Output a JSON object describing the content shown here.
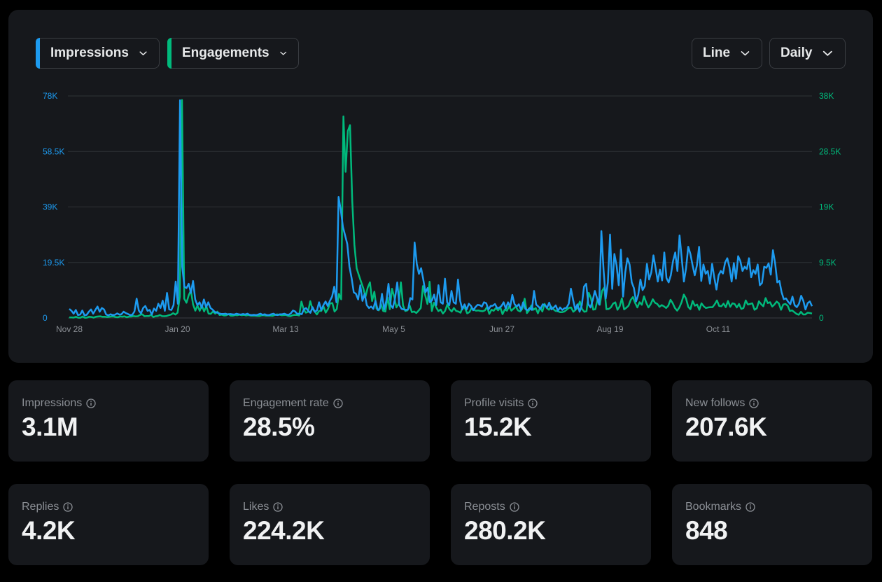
{
  "controls": {
    "metric_left": "Impressions",
    "metric_right": "Engagements",
    "chart_type": "Line",
    "interval": "Daily"
  },
  "colors": {
    "impressions": "#1d9bf0",
    "engagements": "#00ba7c",
    "grid": "#2f3336",
    "card": "#16181c"
  },
  "chart_data": {
    "type": "line",
    "x_tick_labels": [
      "Nov 28",
      "Jan 20",
      "Mar 13",
      "May 5",
      "Jun 27",
      "Aug 19",
      "Oct 11"
    ],
    "y_left_tick_labels": [
      "0",
      "19.5K",
      "39K",
      "58.5K",
      "78K"
    ],
    "y_right_tick_labels": [
      "0",
      "9.5K",
      "19K",
      "28.5K",
      "38K"
    ],
    "y_left_lim": [
      0,
      78000
    ],
    "y_right_lim": [
      0,
      38000
    ],
    "grid": true,
    "series": [
      {
        "name": "Impressions",
        "axis": "left",
        "color": "#1d9bf0",
        "values": [
          3200,
          2500,
          1500,
          2800,
          1000,
          1200,
          2600,
          900,
          1100,
          2200,
          3000,
          1500,
          2800,
          4000,
          2200,
          3500,
          3000,
          1200,
          900,
          1300,
          1000,
          1100,
          1600,
          1200,
          1300,
          2200,
          1700,
          1400,
          1000,
          1100,
          2300,
          6800,
          2600,
          1600,
          3500,
          4200,
          2500,
          2800,
          1200,
          3300,
          2500,
          5000,
          3500,
          6100,
          2500,
          8800,
          3000,
          2800,
          4500,
          12800,
          5000,
          76500,
          18000,
          11000,
          10500,
          12000,
          8800,
          13000,
          6500,
          4500,
          5500,
          3600,
          6500,
          3800,
          5500,
          3500,
          2900,
          2100,
          1900,
          1600,
          1400,
          1400,
          1500,
          1200,
          1400,
          1300,
          1200,
          1500,
          1300,
          1200,
          1400,
          1200,
          1500,
          1100,
          1000,
          1100,
          1000,
          1200,
          1500,
          1100,
          1300,
          1000,
          1000,
          1300,
          1500,
          1100,
          1000,
          1300,
          1300,
          1500,
          1200,
          1100,
          1600,
          2600,
          2300,
          1400,
          1500,
          1300,
          3000,
          3500,
          2500,
          1800,
          3800,
          2200,
          2600,
          5500,
          2800,
          4500,
          5800,
          4200,
          6000,
          7500,
          11000,
          5500,
          42500,
          38000,
          32000,
          29000,
          26000,
          18000,
          14000,
          9000,
          8500,
          6500,
          11500,
          6000,
          8500,
          4500,
          3500,
          4000,
          3200,
          6000,
          2800,
          3200,
          8500,
          3000,
          6000,
          12000,
          4500,
          3500,
          7000,
          12500,
          4500,
          3200,
          3000,
          2800,
          3000,
          7000,
          6500,
          26500,
          19000,
          15500,
          17500,
          13500,
          9000,
          10500,
          5500,
          6200,
          8200,
          4500,
          11500,
          5500,
          5000,
          13800,
          5500,
          4500,
          9500,
          5500,
          5000,
          13500,
          6000,
          3000,
          4800,
          3000,
          5000,
          4200,
          2700,
          3800,
          4600,
          4500,
          4000,
          5500,
          5200,
          3000,
          4200,
          4300,
          4900,
          3500,
          3600,
          4200,
          5500,
          3300,
          5500,
          3900,
          8100,
          4900,
          4000,
          4800,
          2800,
          5500,
          3200,
          2700,
          3500,
          2800,
          9500,
          4700,
          4000,
          3200,
          4800,
          4500,
          3600,
          5400,
          3000,
          3600,
          4400,
          2500,
          3700,
          2800,
          3400,
          3600,
          5000,
          10300,
          6400,
          3000,
          4800,
          2200,
          4500,
          11000,
          12000,
          4800,
          3700,
          6200,
          9500,
          7000,
          4700,
          30500,
          17000,
          6800,
          12500,
          29300,
          10200,
          22500,
          18500,
          11500,
          24000,
          7500,
          16000,
          21000,
          18800,
          12500,
          10500,
          5800,
          8200,
          13500,
          9800,
          11200,
          19000,
          13500,
          16000,
          22000,
          17500,
          12800,
          17000,
          13200,
          23000,
          14000,
          12500,
          15000,
          20000,
          23000,
          16500,
          29000,
          21000,
          12800,
          17500,
          25000,
          22500,
          18500,
          15000,
          18500,
          25000,
          13000,
          18800,
          15500,
          16500,
          12000,
          19000,
          14200,
          10000,
          15000,
          16500,
          15600,
          19500,
          21000,
          17800,
          12800,
          19300,
          13800,
          21700,
          20000,
          16500,
          18000,
          17200,
          21000,
          14300,
          16800,
          15500,
          18800,
          11500,
          12300,
          18000,
          17600,
          19200,
          15200,
          23800,
          19300,
          12500,
          13000,
          9000,
          6600,
          6900,
          5700,
          4800,
          7500,
          4500,
          3800,
          5000,
          7800,
          6000,
          3000,
          5200,
          5800,
          4100
        ]
      },
      {
        "name": "Engagements",
        "axis": "right",
        "color": "#00ba7c",
        "values": [
          100,
          80,
          60,
          200,
          50,
          40,
          250,
          30,
          60,
          210,
          170,
          50,
          200,
          250,
          290,
          200,
          220,
          150,
          190,
          250,
          260,
          160,
          120,
          280,
          230,
          290,
          120,
          240,
          240,
          320,
          280,
          300,
          510,
          630,
          300,
          330,
          320,
          530,
          170,
          300,
          330,
          500,
          310,
          300,
          330,
          470,
          580,
          810,
          580,
          910,
          3660,
          37300,
          3300,
          2600,
          3860,
          4700,
          2330,
          1250,
          2130,
          1220,
          2120,
          1110,
          2030,
          760,
          710,
          1120,
          740,
          1080,
          500,
          560,
          420,
          450,
          670,
          400,
          380,
          490,
          460,
          560,
          450,
          520,
          420,
          490,
          400,
          380,
          400,
          350,
          320,
          440,
          470,
          380,
          390,
          380,
          360,
          520,
          620,
          560,
          450,
          480,
          520,
          350,
          300,
          450,
          530,
          520,
          420,
          2800,
          1520,
          900,
          1040,
          2860,
          1530,
          1110,
          600,
          1200,
          1200,
          2000,
          910,
          1530,
          2490,
          2540,
          1100,
          1540,
          4120,
          3200,
          34500,
          25000,
          32000,
          33000,
          20000,
          12500,
          8500,
          7300,
          6200,
          5100,
          3600,
          5200,
          6100,
          2900,
          4500,
          1600,
          1300,
          2400,
          1200,
          1100,
          3500,
          1500,
          5000,
          3600,
          1800,
          2400,
          6100,
          2150,
          1200,
          1300,
          2100,
          1000,
          1100,
          850,
          1250,
          1700,
          5450,
          3900,
          2400,
          6200,
          1200,
          2600,
          1800,
          1180,
          1450,
          750,
          1200,
          2300,
          1500,
          1100,
          1700,
          1200,
          1100,
          900,
          1880,
          1700,
          790,
          1000,
          1700,
          1400,
          1250,
          1300,
          1200,
          1150,
          1300,
          1900,
          700,
          1400,
          1240,
          1700,
          1310,
          1800,
          650,
          1450,
          1250,
          2000,
          1250,
          1600,
          1950,
          1300,
          1110,
          1600,
          3300,
          830,
          1300,
          2150,
          1400,
          1700,
          800,
          1800,
          1100,
          2410,
          1700,
          1400,
          1960,
          1500,
          1200,
          1150,
          1000,
          1000,
          1100,
          1400,
          1720,
          1800,
          1050,
          1350,
          1800,
          2800,
          1500,
          1050,
          1150,
          4300,
          3400,
          1430,
          1500,
          3220,
          2250,
          4600,
          5200,
          1500,
          1550,
          1800,
          2450,
          2670,
          1400,
          2000,
          3360,
          1460,
          1750,
          2100,
          3100,
          3580,
          2550,
          1800,
          2700,
          2250,
          3700,
          2600,
          1800,
          2350,
          3200,
          2600,
          2400,
          1900,
          2200,
          2000,
          1700,
          2100,
          3100,
          2500,
          1700,
          1250,
          1800,
          2700,
          4000,
          3350,
          1900,
          1500,
          2900,
          2100,
          2300,
          1400,
          2500,
          2000,
          1700,
          1800,
          1850,
          1850,
          2350,
          3000,
          2050,
          2000,
          2450,
          1850,
          2900,
          1900,
          2500,
          2400,
          1800,
          2400,
          1550,
          1700,
          3000,
          2300,
          2400,
          2500,
          1400,
          1650,
          2850,
          2350,
          2000,
          3400,
          2550,
          2700,
          1950,
          2300,
          2800,
          2500,
          1400,
          2300,
          2400,
          2100,
          1200,
          1300,
          1000,
          700,
          550,
          1050,
          600,
          600,
          900,
          850,
          750
        ]
      }
    ]
  },
  "stats": [
    {
      "label": "Impressions",
      "value": "3.1M"
    },
    {
      "label": "Engagement rate",
      "value": "28.5%"
    },
    {
      "label": "Profile visits",
      "value": "15.2K"
    },
    {
      "label": "New follows",
      "value": "207.6K"
    },
    {
      "label": "Replies",
      "value": "4.2K"
    },
    {
      "label": "Likes",
      "value": "224.2K"
    },
    {
      "label": "Reposts",
      "value": "280.2K"
    },
    {
      "label": "Bookmarks",
      "value": "848"
    }
  ]
}
